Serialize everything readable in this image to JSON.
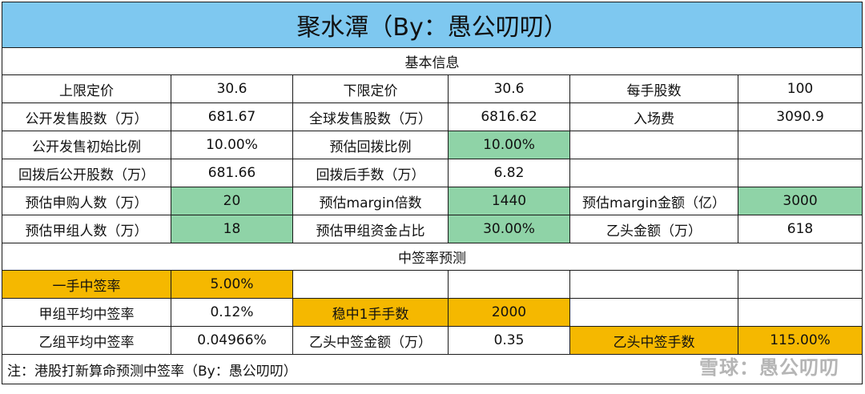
{
  "title": "聚水潭（By：愚公叨叨）",
  "section_basic": "基本信息",
  "section_predict": "中签率预测",
  "rows": [
    {
      "c": [
        {
          "t": "上限定价"
        },
        {
          "t": "30.6"
        },
        {
          "t": "下限定价"
        },
        {
          "t": "30.6"
        },
        {
          "t": "每手股数"
        },
        {
          "t": "100"
        }
      ]
    },
    {
      "c": [
        {
          "t": "公开发售股数（万）"
        },
        {
          "t": "681.67"
        },
        {
          "t": "全球发售股数（万）"
        },
        {
          "t": "6816.62"
        },
        {
          "t": "入场费"
        },
        {
          "t": "3090.9"
        }
      ]
    },
    {
      "c": [
        {
          "t": "公开发售初始比例"
        },
        {
          "t": "10.00%"
        },
        {
          "t": "预估回拨比例"
        },
        {
          "t": "10.00%",
          "hl": "green"
        },
        {
          "t": ""
        },
        {
          "t": ""
        }
      ]
    },
    {
      "c": [
        {
          "t": "回拨后公开股数（万）"
        },
        {
          "t": "681.66"
        },
        {
          "t": "回拨后手数（万）"
        },
        {
          "t": "6.82"
        },
        {
          "t": ""
        },
        {
          "t": ""
        }
      ]
    },
    {
      "c": [
        {
          "t": "预估申购人数（万）"
        },
        {
          "t": "20",
          "hl": "green"
        },
        {
          "t": "预估margin倍数"
        },
        {
          "t": "1440",
          "hl": "green"
        },
        {
          "t": "预估margin金额（亿）"
        },
        {
          "t": "3000",
          "hl": "green"
        }
      ]
    },
    {
      "c": [
        {
          "t": "预估甲组人数（万）"
        },
        {
          "t": "18",
          "hl": "green"
        },
        {
          "t": "预估甲组资金占比"
        },
        {
          "t": "30.00%",
          "hl": "green"
        },
        {
          "t": "乙头金额（万）"
        },
        {
          "t": "618"
        }
      ]
    }
  ],
  "rows2": [
    {
      "c": [
        {
          "t": "一手中签率",
          "hl": "orange"
        },
        {
          "t": "5.00%",
          "hl": "orange"
        },
        {
          "t": ""
        },
        {
          "t": ""
        },
        {
          "t": ""
        },
        {
          "t": ""
        }
      ]
    },
    {
      "c": [
        {
          "t": "甲组平均中签率"
        },
        {
          "t": "0.12%"
        },
        {
          "t": "稳中1手手数",
          "hl": "orange"
        },
        {
          "t": "2000",
          "hl": "orange"
        },
        {
          "t": ""
        },
        {
          "t": ""
        }
      ]
    },
    {
      "c": [
        {
          "t": "乙组平均中签率"
        },
        {
          "t": "0.04966%"
        },
        {
          "t": "乙头中签金额（万）"
        },
        {
          "t": "0.35"
        },
        {
          "t": "乙头中签手数",
          "hl": "orange"
        },
        {
          "t": "115.00%",
          "hl": "orange"
        }
      ]
    }
  ],
  "note": "注：港股打新算命预测中签率（By：愚公叨叨）",
  "watermark": "雪球：愚公叨叨",
  "colors": {
    "title_bg": "#7ec8f0",
    "green": "#8fd3a7",
    "orange": "#f5b800"
  }
}
